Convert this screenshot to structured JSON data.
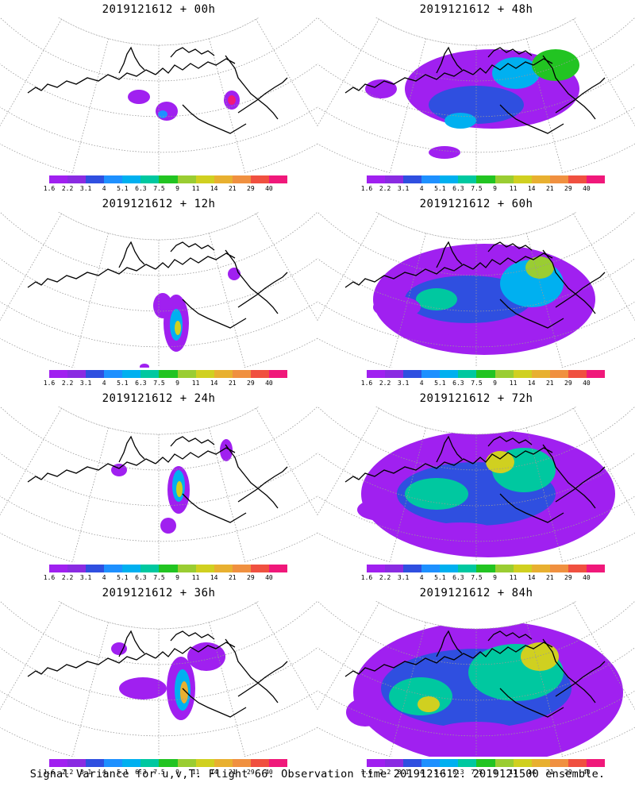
{
  "panels": [
    {
      "title": "2019121612 + 00h",
      "intensity": 0
    },
    {
      "title": "2019121612 + 48h",
      "intensity": 4
    },
    {
      "title": "2019121612 + 12h",
      "intensity": 1
    },
    {
      "title": "2019121612 + 60h",
      "intensity": 5
    },
    {
      "title": "2019121612 + 24h",
      "intensity": 2
    },
    {
      "title": "2019121612 + 72h",
      "intensity": 6
    },
    {
      "title": "2019121612 + 36h",
      "intensity": 3
    },
    {
      "title": "2019121612 + 84h",
      "intensity": 7
    }
  ],
  "colorbar": {
    "labels": [
      "1.6",
      "2.2",
      "3.1",
      "4",
      "5.1",
      "6.3",
      "7.5",
      "9",
      "11",
      "14",
      "21",
      "29",
      "40"
    ],
    "colors": [
      "#a020f0",
      "#8a2be2",
      "#2f4fe0",
      "#1e90ff",
      "#00b0f0",
      "#00c8a0",
      "#22c422",
      "#9acd32",
      "#d0d020",
      "#e8b030",
      "#f09040",
      "#f05040",
      "#f0187a"
    ]
  },
  "footer": "Signal Variance for u,v,T. Flight 66. Observation time 2019121612. 2019121500 ensemble."
}
